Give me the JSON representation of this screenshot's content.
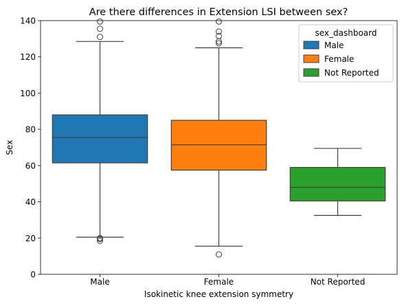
{
  "chart_data": {
    "type": "box",
    "title": "Are there differences in Extension LSI between sex?",
    "xlabel": "Isokinetic knee extension symmetry",
    "ylabel": "Sex",
    "ylim": [
      0,
      140
    ],
    "yticks": [
      0,
      20,
      40,
      60,
      80,
      100,
      120,
      140
    ],
    "grid": false,
    "categories": [
      "Male",
      "Female",
      "Not Reported"
    ],
    "legend": {
      "title": "sex_dashboard",
      "placement": "top-right",
      "entries": [
        {
          "label": "Male",
          "color": "#1f77b4"
        },
        {
          "label": "Female",
          "color": "#ff7f0e"
        },
        {
          "label": "Not Reported",
          "color": "#2ca02c"
        }
      ]
    },
    "series": [
      {
        "category": "Male",
        "color": "#1f77b4",
        "whisker_low": 20.5,
        "q1": 61.5,
        "median": 75.5,
        "q3": 88.0,
        "whisker_high": 128.5,
        "outliers": [
          18.5,
          19.5,
          20.0,
          131.0,
          135.5,
          139.5
        ]
      },
      {
        "category": "Female",
        "color": "#ff7f0e",
        "whisker_low": 15.5,
        "q1": 57.5,
        "median": 71.5,
        "q3": 85.0,
        "whisker_high": 125.0,
        "outliers": [
          11.0,
          127.5,
          128.5,
          131.5,
          134.0,
          139.5
        ]
      },
      {
        "category": "Not Reported",
        "color": "#2ca02c",
        "whisker_low": 32.5,
        "q1": 40.5,
        "median": 48.0,
        "q3": 59.0,
        "whisker_high": 69.5,
        "outliers": []
      }
    ]
  }
}
